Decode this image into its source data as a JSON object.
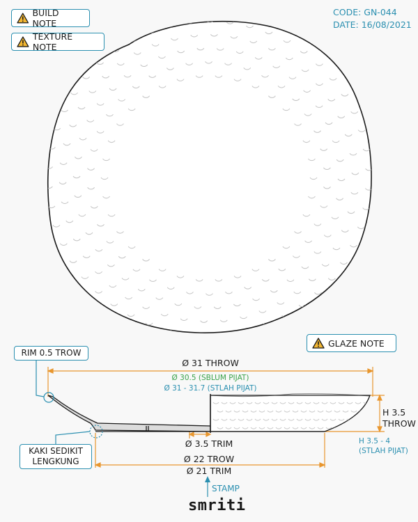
{
  "notes": {
    "build": "BUILD NOTE",
    "texture": "TEXTURE NOTE",
    "glaze": "GLAZE NOTE"
  },
  "meta": {
    "code": "CODE: GN-044",
    "date": "DATE: 16/08/2021"
  },
  "callouts": {
    "rim": "RIM 0.5 TROW",
    "foot_line1": "KAKI SEDIKIT",
    "foot_line2": "LENGKUNG"
  },
  "dimensions": {
    "throw_diameter": "Ø 31 THROW",
    "before_press": "Ø 30.5 (SBLUM PIJAT)",
    "after_press": "Ø 31 - 31.7 (STLAH PIJAT)",
    "height_throw_1": "H 3.5",
    "height_throw_2": "THROW",
    "height_after_1": "H 3.5 - 4",
    "height_after_2": "(STLAH PIJAT)",
    "foot_trim": "Ø 3.5 TRIM",
    "base_throw": "Ø 22 TROW",
    "base_trim": "Ø 21 TRIM"
  },
  "stamp": {
    "label": "STAMP",
    "brand": "smriti"
  },
  "colors": {
    "accent": "#2a8fb0",
    "dimension": "#e8962e",
    "green_text": "#3aa24a",
    "outline": "#1a1a1a"
  }
}
